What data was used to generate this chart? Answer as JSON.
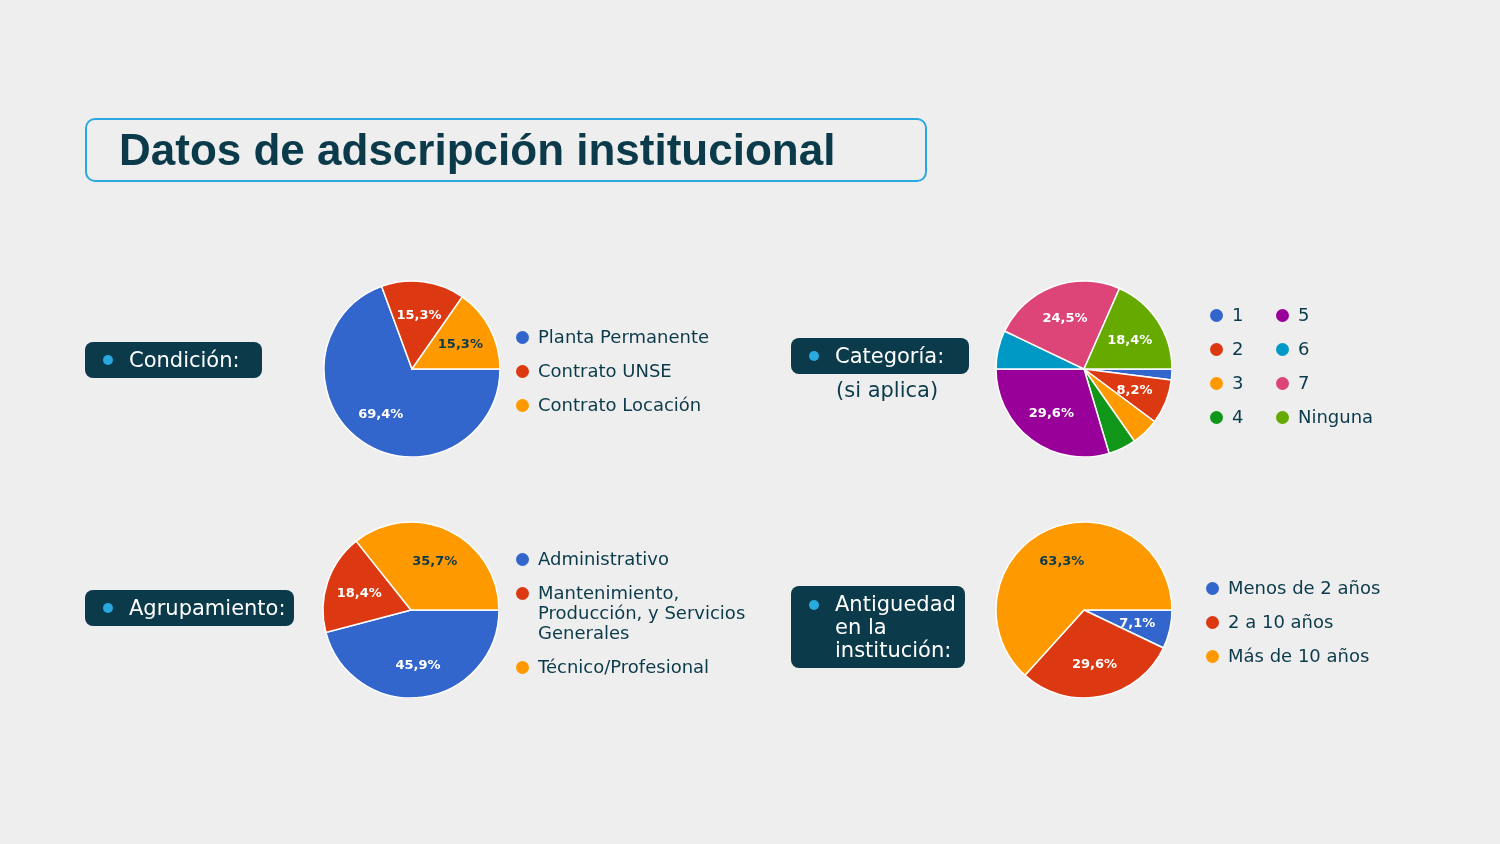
{
  "chart_data": [
    {
      "type": "pie",
      "title": "Condición:",
      "annotations": [
        "Datos de adscripción institucional"
      ],
      "categories": [
        "Planta Permanente",
        "Contrato UNSE",
        "Contrato Locación"
      ],
      "values": [
        69.4,
        15.3,
        15.3
      ],
      "colors": [
        "#3366cc",
        "#dc3912",
        "#ff9900"
      ],
      "value_labels": [
        "69,4%",
        "15,3%",
        "15,3%"
      ],
      "legend": "right"
    },
    {
      "type": "pie",
      "title": "Agrupamiento:",
      "categories": [
        "Administrativo",
        "Mantenimiento, Producción, y Servicios Generales",
        "Técnico/Profesional"
      ],
      "values": [
        45.9,
        18.4,
        35.7
      ],
      "colors": [
        "#3366cc",
        "#dc3912",
        "#ff9900"
      ],
      "value_labels": [
        "45,9%",
        "18,4%",
        "35,7%"
      ],
      "legend": "right"
    },
    {
      "type": "pie",
      "title": "Categoría:",
      "subtitle": "(si aplica)",
      "categories": [
        "1",
        "2",
        "3",
        "4",
        "5",
        "6",
        "7",
        "Ninguna"
      ],
      "values": [
        2.0,
        8.2,
        5.1,
        5.1,
        29.6,
        7.1,
        24.5,
        18.4
      ],
      "colors": [
        "#3366cc",
        "#dc3912",
        "#ff9900",
        "#109618",
        "#990099",
        "#0099c6",
        "#dd4477",
        "#66aa00"
      ],
      "value_labels": [
        null,
        "8,2%",
        null,
        null,
        "29,6%",
        null,
        "24,5%",
        "18,4%"
      ],
      "legend": "right"
    },
    {
      "type": "pie",
      "title": "Antiguedad en la institución:",
      "categories": [
        "Menos de 2 años",
        "2 a 10 años",
        "Más de 10 años"
      ],
      "values": [
        7.1,
        29.6,
        63.3
      ],
      "colors": [
        "#3366cc",
        "#dc3912",
        "#ff9900"
      ],
      "value_labels": [
        "7,1%",
        "29,6%",
        "63,3%"
      ],
      "legend": "right"
    }
  ]
}
